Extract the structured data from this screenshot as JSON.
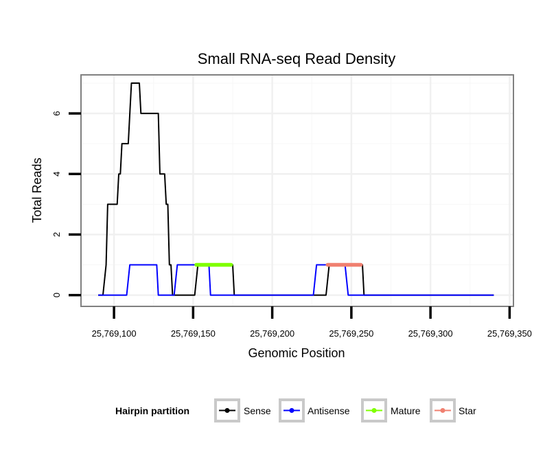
{
  "chart_data": {
    "type": "line",
    "title": "Small RNA-seq Read Density",
    "xlabel": "Genomic Position",
    "ylabel": "Total Reads",
    "xlim": [
      25769080,
      25769352
    ],
    "ylim": [
      -0.35,
      7.25
    ],
    "x_ticks": [
      25769100,
      25769150,
      25769200,
      25769250,
      25769300,
      25769350
    ],
    "x_tick_labels": [
      "25,769,100",
      "25,769,150",
      "25,769,200",
      "25,769,250",
      "25,769,300",
      "25,769,350"
    ],
    "y_ticks": [
      0,
      2,
      4,
      6
    ],
    "y_tick_labels": [
      "0",
      "2",
      "4",
      "6"
    ],
    "grid": true,
    "series": [
      {
        "name": "Sense",
        "color": "#000000",
        "width": 2,
        "x": [
          25769090,
          25769093,
          25769095,
          25769096,
          25769101,
          25769102,
          25769103,
          25769104,
          25769105,
          25769107,
          25769109,
          25769110,
          25769111,
          25769113,
          25769114,
          25769116,
          25769117,
          25769122,
          25769127,
          25769128,
          25769129,
          25769130,
          25769131,
          25769132,
          25769133,
          25769134,
          25769135,
          25769136,
          25769137,
          25769143,
          25769144,
          25769147,
          25769150,
          25769151,
          25769153,
          25769155,
          25769157,
          25769158,
          25769159,
          25769160,
          25769162,
          25769165,
          25769170,
          25769171,
          25769173,
          25769175,
          25769176,
          25769200,
          25769230,
          25769233,
          25769234,
          25769236,
          25769240,
          25769243,
          25769247,
          25769250,
          25769253,
          25769255,
          25769257,
          25769258,
          25769300,
          25769340
        ],
        "y": [
          0,
          0,
          1,
          3,
          3,
          3,
          4,
          4,
          5,
          5,
          5,
          6,
          7,
          7,
          7,
          7,
          6,
          6,
          6,
          6,
          4,
          4,
          4,
          4,
          3,
          3,
          1,
          1,
          0,
          0,
          0,
          0,
          0,
          0,
          1,
          1,
          1,
          1,
          1,
          1,
          1,
          1,
          1,
          1,
          1,
          1,
          0,
          0,
          0,
          0,
          0,
          1,
          1,
          1,
          1,
          1,
          1,
          1,
          1,
          0,
          0,
          0
        ]
      },
      {
        "name": "Antisense",
        "color": "#0000ff",
        "width": 2,
        "x": [
          25769090,
          25769092,
          25769100,
          25769108,
          25769110,
          25769115,
          25769120,
          25769126,
          25769127,
          25769128,
          25769133,
          25769136,
          25769138,
          25769140,
          25769145,
          25769150,
          25769155,
          25769159,
          25769160,
          25769161,
          25769170,
          25769200,
          25769226,
          25769228,
          25769235,
          25769245,
          25769246,
          25769248,
          25769250,
          25769300,
          25769340
        ],
        "y": [
          0,
          0,
          0,
          0,
          1,
          1,
          1,
          1,
          1,
          0,
          0,
          0,
          0,
          1,
          1,
          1,
          1,
          1,
          1,
          0,
          0,
          0,
          0,
          1,
          1,
          1,
          1,
          0,
          0,
          0,
          0
        ]
      },
      {
        "name": "Mature",
        "color": "#7fff00",
        "width": 5.5,
        "x": [
          25769152,
          25769174
        ],
        "y": [
          1,
          1
        ]
      },
      {
        "name": "Star",
        "color": "#f08070",
        "width": 5.5,
        "x": [
          25769235,
          25769256
        ],
        "y": [
          1,
          1
        ]
      }
    ],
    "legend": {
      "title": "Hairpin partition",
      "position": "bottom",
      "entries": [
        {
          "label": "Sense",
          "color": "#000000"
        },
        {
          "label": "Antisense",
          "color": "#0000ff"
        },
        {
          "label": "Mature",
          "color": "#7fff00"
        },
        {
          "label": "Star",
          "color": "#f08070"
        }
      ]
    }
  }
}
